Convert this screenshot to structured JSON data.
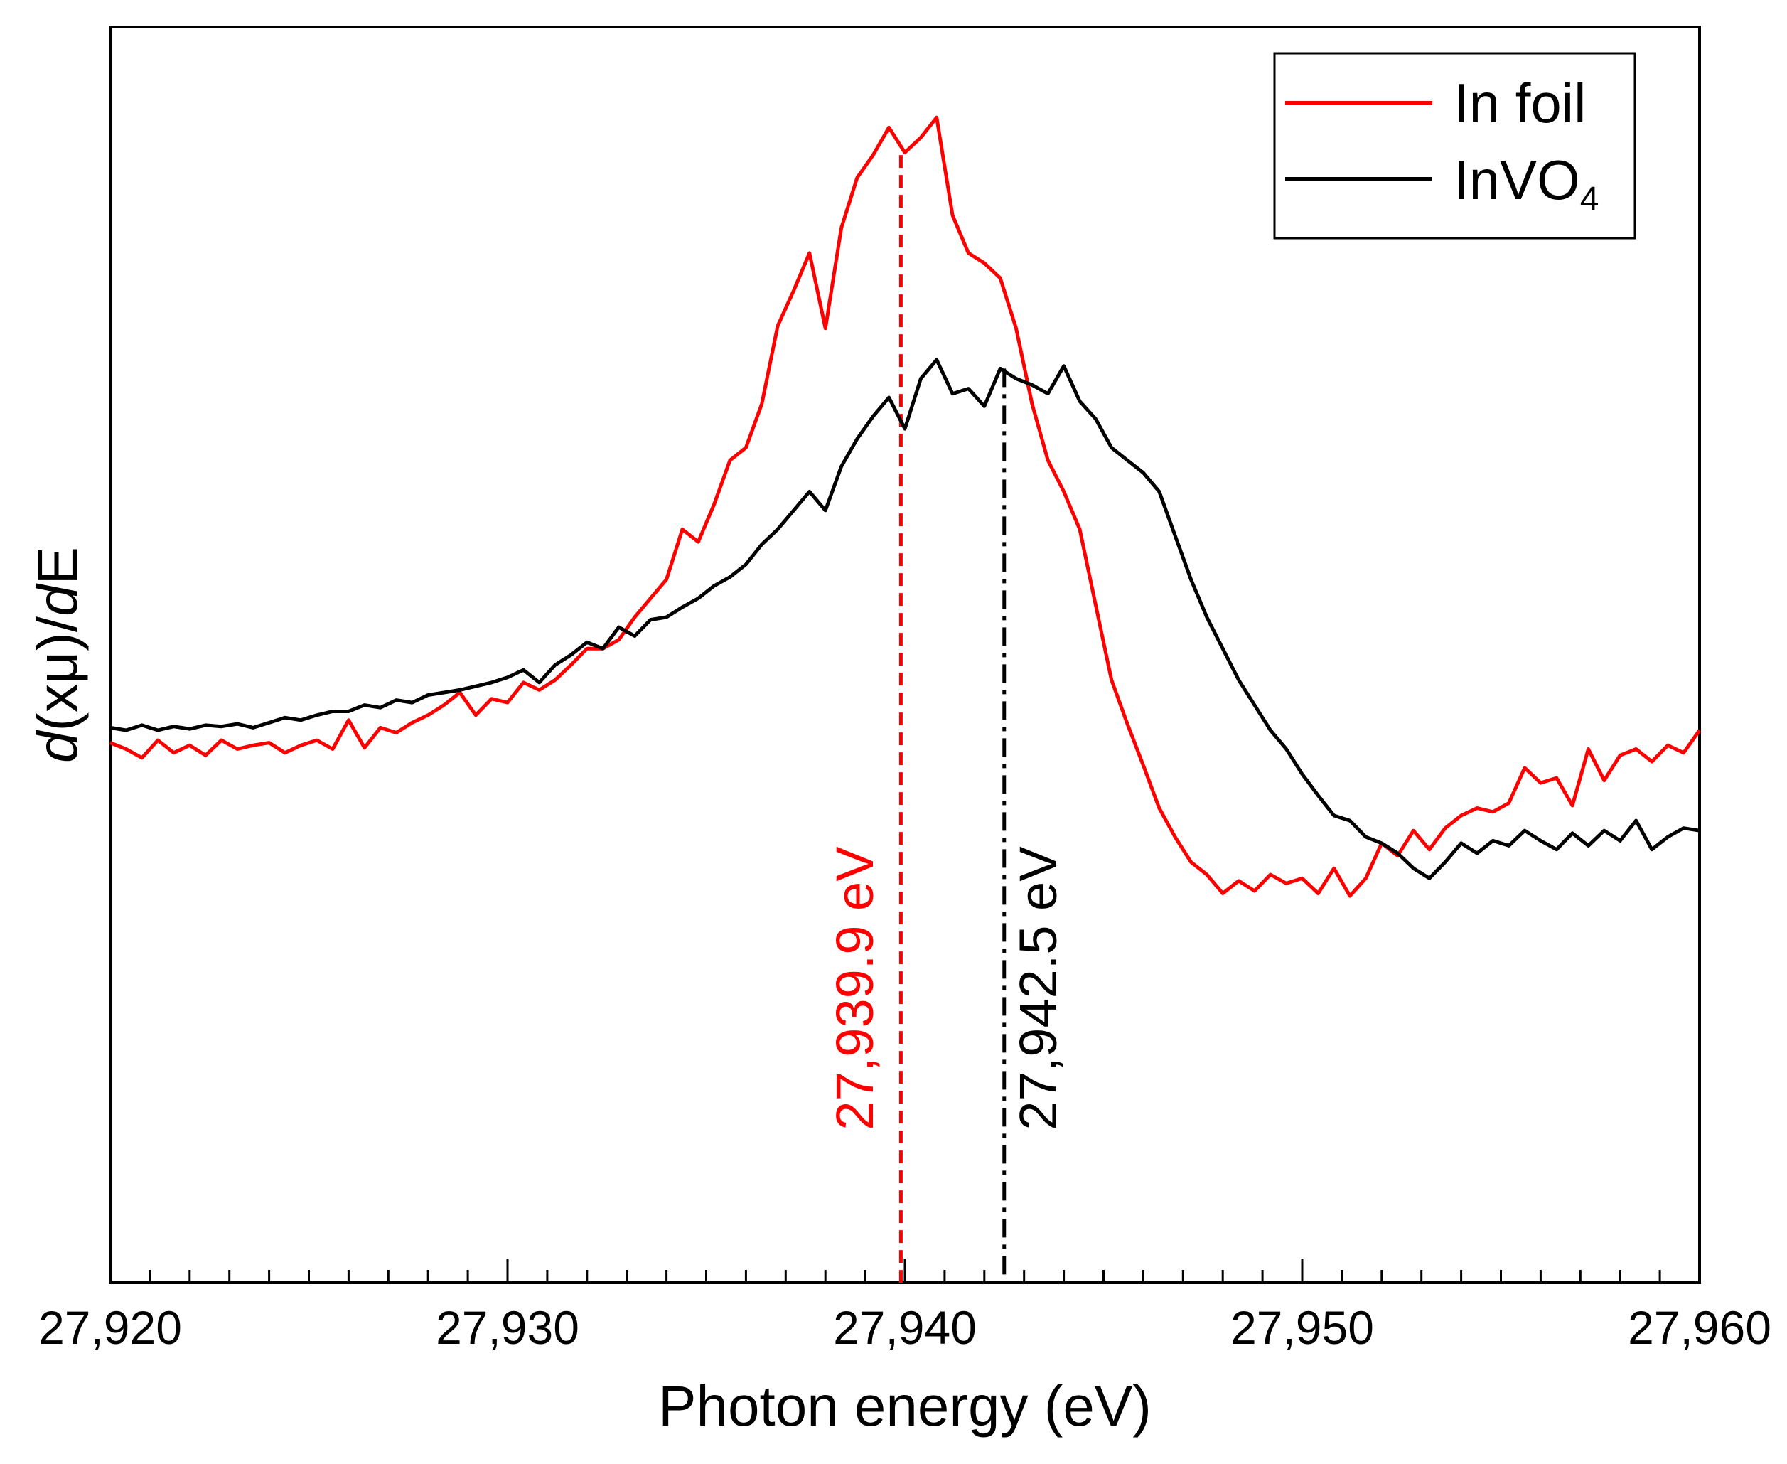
{
  "chart_data": {
    "type": "line",
    "title": "",
    "xlabel": "Photon energy (eV)",
    "ylabel": "d(xμ)/dE",
    "ylabel_parts": {
      "d1": "d",
      "mid": "(xμ)/",
      "d2": "d",
      "end": "E"
    },
    "xlim": [
      27920,
      27960
    ],
    "ylim": [
      0,
      1
    ],
    "x_ticks": [
      {
        "value": 27920,
        "label": "27,920"
      },
      {
        "value": 27930,
        "label": "27,930"
      },
      {
        "value": 27940,
        "label": "27,940"
      },
      {
        "value": 27950,
        "label": "27,950"
      },
      {
        "value": 27960,
        "label": "27,960"
      }
    ],
    "grid": false,
    "legend": {
      "position": "top-right",
      "entries": [
        {
          "label": "In foil",
          "color": "#ff0000"
        },
        {
          "label": "InVO",
          "subscript": "4",
          "color": "#000000"
        }
      ]
    },
    "series": [
      {
        "name": "In foil",
        "color": "#ff0000",
        "x": [
          27920.0,
          27920.4,
          27920.8,
          27921.2,
          27921.6,
          27922.0,
          27922.4,
          27922.8,
          27923.2,
          27923.6,
          27924.0,
          27924.4,
          27924.8,
          27925.2,
          27925.6,
          27926.0,
          27926.4,
          27926.8,
          27927.2,
          27927.6,
          27928.0,
          27928.4,
          27928.8,
          27929.2,
          27929.6,
          27930.0,
          27930.4,
          27930.8,
          27931.2,
          27931.6,
          27932.0,
          27932.4,
          27932.8,
          27933.2,
          27933.6,
          27934.0,
          27934.4,
          27934.8,
          27935.2,
          27935.6,
          27936.0,
          27936.4,
          27936.8,
          27937.2,
          27937.6,
          27938.0,
          27938.4,
          27938.8,
          27939.2,
          27939.6,
          27940.0,
          27940.4,
          27940.8,
          27941.2,
          27941.6,
          27942.0,
          27942.4,
          27942.8,
          27943.2,
          27943.6,
          27944.0,
          27944.4,
          27944.8,
          27945.2,
          27945.6,
          27946.0,
          27946.4,
          27946.8,
          27947.2,
          27947.6,
          27948.0,
          27948.4,
          27948.8,
          27949.2,
          27949.6,
          27950.0,
          27950.4,
          27950.8,
          27951.2,
          27951.6,
          27952.0,
          27952.4,
          27952.8,
          27953.2,
          27953.6,
          27954.0,
          27954.4,
          27954.8,
          27955.2,
          27955.6,
          27956.0,
          27956.4,
          27956.8,
          27957.2,
          27957.6,
          27958.0,
          27958.4,
          27958.8,
          27959.2,
          27959.6,
          27960.0
        ],
        "y": [
          0.43,
          0.425,
          0.418,
          0.432,
          0.422,
          0.428,
          0.42,
          0.432,
          0.425,
          0.428,
          0.43,
          0.422,
          0.428,
          0.432,
          0.425,
          0.448,
          0.426,
          0.442,
          0.438,
          0.446,
          0.452,
          0.46,
          0.47,
          0.452,
          0.465,
          0.462,
          0.478,
          0.472,
          0.48,
          0.492,
          0.505,
          0.505,
          0.512,
          0.53,
          0.545,
          0.56,
          0.6,
          0.59,
          0.62,
          0.655,
          0.665,
          0.7,
          0.762,
          0.79,
          0.82,
          0.76,
          0.84,
          0.88,
          0.898,
          0.92,
          0.9,
          0.912,
          0.928,
          0.85,
          0.82,
          0.812,
          0.8,
          0.76,
          0.7,
          0.655,
          0.63,
          0.6,
          0.54,
          0.48,
          0.445,
          0.412,
          0.378,
          0.355,
          0.335,
          0.325,
          0.31,
          0.32,
          0.312,
          0.325,
          0.318,
          0.322,
          0.31,
          0.33,
          0.308,
          0.322,
          0.35,
          0.34,
          0.36,
          0.345,
          0.362,
          0.372,
          0.378,
          0.375,
          0.382,
          0.41,
          0.398,
          0.402,
          0.38,
          0.425,
          0.4,
          0.42,
          0.425,
          0.415,
          0.428,
          0.422,
          0.44
        ]
      },
      {
        "name": "InVO4",
        "color": "#000000",
        "x": [
          27920.0,
          27920.4,
          27920.8,
          27921.2,
          27921.6,
          27922.0,
          27922.4,
          27922.8,
          27923.2,
          27923.6,
          27924.0,
          27924.4,
          27924.8,
          27925.2,
          27925.6,
          27926.0,
          27926.4,
          27926.8,
          27927.2,
          27927.6,
          27928.0,
          27928.4,
          27928.8,
          27929.2,
          27929.6,
          27930.0,
          27930.4,
          27930.8,
          27931.2,
          27931.6,
          27932.0,
          27932.4,
          27932.8,
          27933.2,
          27933.6,
          27934.0,
          27934.4,
          27934.8,
          27935.2,
          27935.6,
          27936.0,
          27936.4,
          27936.8,
          27937.2,
          27937.6,
          27938.0,
          27938.4,
          27938.8,
          27939.2,
          27939.6,
          27940.0,
          27940.4,
          27940.8,
          27941.2,
          27941.6,
          27942.0,
          27942.4,
          27942.8,
          27943.2,
          27943.6,
          27944.0,
          27944.4,
          27944.8,
          27945.2,
          27945.6,
          27946.0,
          27946.4,
          27946.8,
          27947.2,
          27947.6,
          27948.0,
          27948.4,
          27948.8,
          27949.2,
          27949.6,
          27950.0,
          27950.4,
          27950.8,
          27951.2,
          27951.6,
          27952.0,
          27952.4,
          27952.8,
          27953.2,
          27953.6,
          27954.0,
          27954.4,
          27954.8,
          27955.2,
          27955.6,
          27956.0,
          27956.4,
          27956.8,
          27957.2,
          27957.6,
          27958.0,
          27958.4,
          27958.8,
          27959.2,
          27959.6,
          27960.0
        ],
        "y": [
          0.442,
          0.44,
          0.444,
          0.44,
          0.443,
          0.441,
          0.444,
          0.443,
          0.445,
          0.442,
          0.446,
          0.45,
          0.448,
          0.452,
          0.455,
          0.455,
          0.46,
          0.458,
          0.464,
          0.462,
          0.468,
          0.47,
          0.472,
          0.475,
          0.478,
          0.482,
          0.488,
          0.478,
          0.492,
          0.5,
          0.51,
          0.505,
          0.522,
          0.515,
          0.528,
          0.53,
          0.538,
          0.545,
          0.555,
          0.562,
          0.572,
          0.588,
          0.6,
          0.615,
          0.63,
          0.615,
          0.65,
          0.672,
          0.69,
          0.705,
          0.68,
          0.72,
          0.735,
          0.708,
          0.712,
          0.698,
          0.728,
          0.72,
          0.715,
          0.708,
          0.73,
          0.702,
          0.688,
          0.665,
          0.655,
          0.645,
          0.63,
          0.595,
          0.56,
          0.53,
          0.505,
          0.48,
          0.46,
          0.44,
          0.425,
          0.405,
          0.388,
          0.372,
          0.368,
          0.355,
          0.35,
          0.342,
          0.33,
          0.322,
          0.335,
          0.35,
          0.342,
          0.352,
          0.348,
          0.36,
          0.352,
          0.345,
          0.358,
          0.348,
          0.36,
          0.352,
          0.368,
          0.345,
          0.355,
          0.362,
          0.36
        ]
      }
    ],
    "markers": [
      {
        "x": 27939.9,
        "y_top": 0.898,
        "label": "27,939.9 eV",
        "color": "#ff0000",
        "style": "dashed"
      },
      {
        "x": 27942.5,
        "y_top": 0.728,
        "label": "27,942.5 eV",
        "color": "#000000",
        "style": "dashdot"
      }
    ]
  }
}
